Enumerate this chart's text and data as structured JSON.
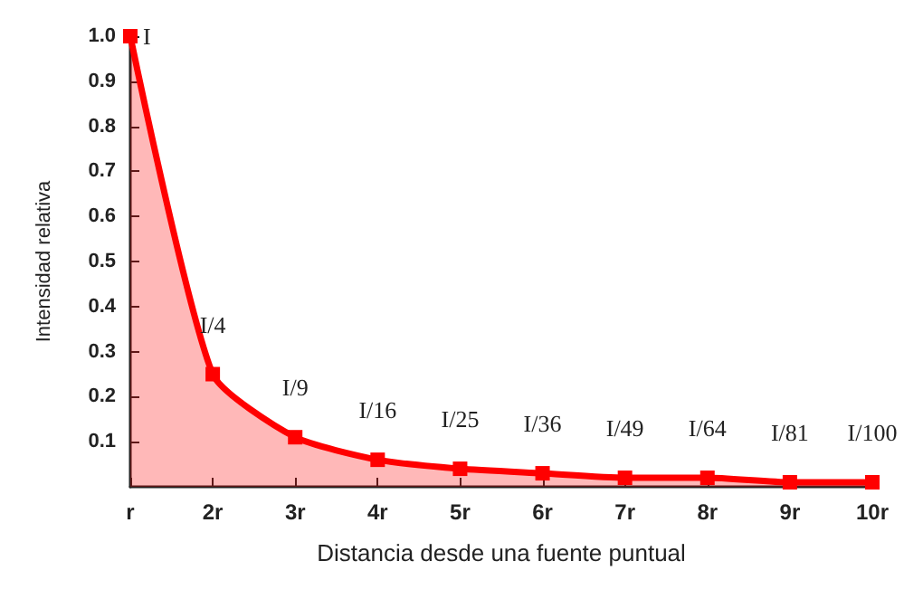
{
  "chart_data": {
    "type": "area",
    "xlabel": "Distancia desde una fuente puntual",
    "ylabel": "Intensidad relativa",
    "categories": [
      "r",
      "2r",
      "3r",
      "4r",
      "5r",
      "6r",
      "7r",
      "8r",
      "9r",
      "10r"
    ],
    "series": [
      {
        "color": "#ff0000",
        "values": [
          1,
          0.25,
          0.11,
          0.06,
          0.04,
          0.03,
          0.02,
          0.02,
          0.01,
          0.01
        ]
      }
    ],
    "ylim": [
      0,
      1
    ],
    "yticks": [
      0.1,
      0.2,
      0.3,
      0.4,
      0.5,
      0.6,
      0.7,
      0.8,
      0.9,
      {
        "value": 1,
        "label": "1.0"
      }
    ],
    "grid": false,
    "marker": "square",
    "line_style": "solid",
    "annotations": [
      {
        "text": "I",
        "x": "r",
        "y": 1
      },
      {
        "text": "I/4",
        "x": "2r",
        "y": 0.25
      },
      {
        "text": "I/9",
        "x": "3r",
        "y": 0.11
      },
      {
        "text": "I/16",
        "x": "4r",
        "y": 0.06
      },
      {
        "text": "I/25",
        "x": "5r",
        "y": 0.04
      },
      {
        "text": "I/36",
        "x": "6r",
        "y": 0.03
      },
      {
        "text": "I/49",
        "x": "7r",
        "y": 0.02
      },
      {
        "text": "I/64",
        "x": "8r",
        "y": 0.02
      },
      {
        "text": "I/81",
        "x": "9r",
        "y": 0.01
      },
      {
        "text": "I/100",
        "x": "10r",
        "y": 0.01
      }
    ]
  }
}
